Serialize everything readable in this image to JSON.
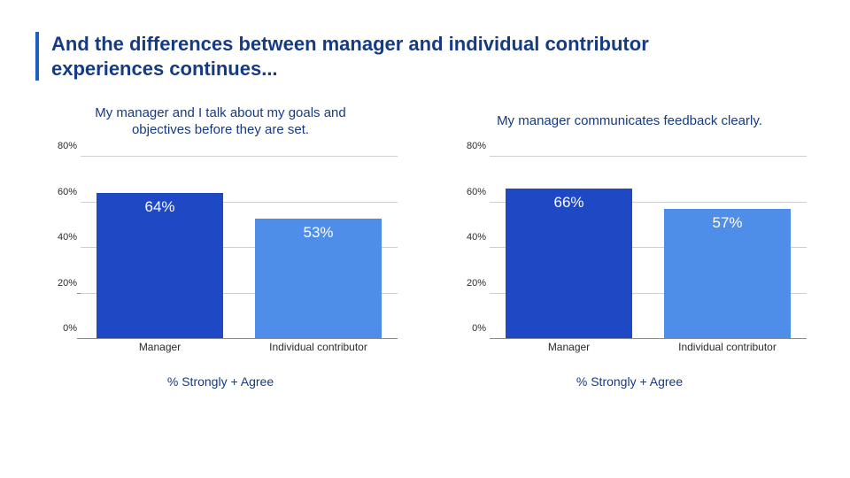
{
  "title": "And the differences between manager and individual contributor experiences continues...",
  "title_color": "#163b82",
  "accent_bar_color": "#1f5fbf",
  "background_color": "#ffffff",
  "axis_label_color": "#2b2b2b",
  "grid_color": "#d0d0d0",
  "baseline_color": "#8a8a8a",
  "charts": [
    {
      "subtitle": "My manager and I talk about my goals and objectives before they are set.",
      "subtitle_color": "#163b82",
      "footer": "% Strongly + Agree",
      "footer_color": "#163b82",
      "ylim": [
        0,
        80
      ],
      "ytick_step": 20,
      "ytick_labels": [
        "0%",
        "20%",
        "40%",
        "60%",
        "80%"
      ],
      "categories": [
        "Manager",
        "Individual contributor"
      ],
      "values": [
        64,
        53
      ],
      "value_labels": [
        "64%",
        "53%"
      ],
      "bar_colors": [
        "#1f48c5",
        "#4f8ee8"
      ],
      "bar_label_color": "#ffffff",
      "axis_fontsize": 11,
      "subtitle_fontsize": 15,
      "bar_label_fontsize": 17,
      "footer_fontsize": 14
    },
    {
      "subtitle": "My manager communicates feedback clearly.",
      "subtitle_color": "#163b82",
      "footer": "% Strongly + Agree",
      "footer_color": "#163b82",
      "ylim": [
        0,
        80
      ],
      "ytick_step": 20,
      "ytick_labels": [
        "0%",
        "20%",
        "40%",
        "60%",
        "80%"
      ],
      "categories": [
        "Manager",
        "Individual contributor"
      ],
      "values": [
        66,
        57
      ],
      "value_labels": [
        "66%",
        "57%"
      ],
      "bar_colors": [
        "#1f48c5",
        "#4f8ee8"
      ],
      "bar_label_color": "#ffffff",
      "axis_fontsize": 11,
      "subtitle_fontsize": 15,
      "bar_label_fontsize": 17,
      "footer_fontsize": 14
    }
  ]
}
